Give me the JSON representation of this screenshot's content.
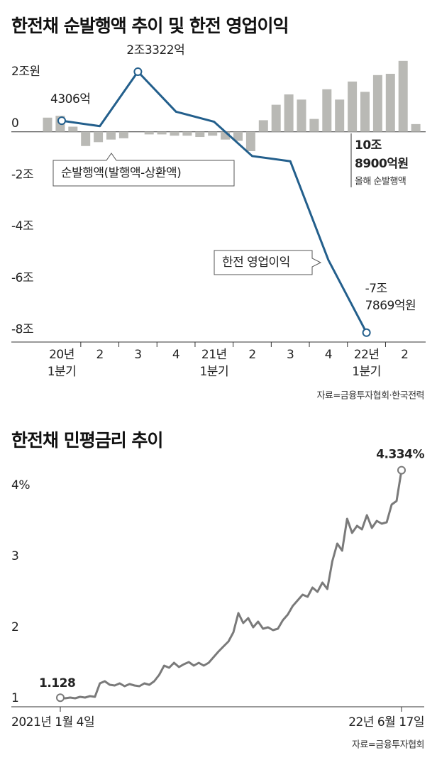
{
  "chart_data": [
    {
      "type": "bar_line",
      "title": "한전채 순발행액 추이 및 한전 영업이익",
      "categories": [
        "20년\n1분기",
        "2",
        "3",
        "4",
        "21년\n1분기",
        "2",
        "3",
        "4",
        "22년\n1분기",
        "2"
      ],
      "series": [
        {
          "name": "순발행액(발행액-상환액)",
          "type": "bar",
          "color": "#b9b9b5",
          "values": [
            [
              0.55,
              0.62,
              0.2
            ],
            [
              -0.55,
              -0.4,
              -0.3
            ],
            [
              -0.25,
              0,
              -0.1
            ],
            [
              -0.1,
              -0.15,
              -0.15
            ],
            [
              -0.2,
              -0.15,
              -0.3
            ],
            [
              -0.35,
              -0.75,
              0.45
            ],
            [
              1.05,
              1.45,
              1.25
            ],
            [
              0.5,
              1.65,
              1.25
            ],
            [
              1.95,
              1.55,
              2.2
            ],
            [
              2.25,
              2.75,
              0.3
            ]
          ]
        },
        {
          "name": "한전 영업이익",
          "type": "line",
          "color": "#235f8c",
          "values": [
            0.4306,
            0.22,
            2.3322,
            0.78,
            0.39,
            -0.94,
            -1.14,
            -4.97,
            -7.7869,
            null
          ],
          "value_labels": [
            "4306억",
            null,
            "2조3322억",
            null,
            null,
            null,
            null,
            null,
            "-7조\n7869억원",
            null
          ]
        }
      ],
      "ylim": [
        -8.15,
        2.8
      ],
      "yticks": [
        {
          "value": 2,
          "label": "2조원"
        },
        0,
        {
          "value": -2,
          "label": "-2조"
        },
        {
          "value": -4,
          "label": "-4조"
        },
        {
          "value": -6,
          "label": "-6조"
        },
        {
          "value": -8,
          "label": "-8조"
        }
      ],
      "grid": false,
      "annotations": [
        "10조\n8900억원",
        "올해 순발행액"
      ],
      "source": "자료=금융투자협회·한국전력"
    },
    {
      "type": "line",
      "title": "한전채 민평금리 추이",
      "categories": [
        "2021년 1월 4일",
        null,
        null,
        null,
        null,
        null,
        null,
        null,
        null,
        null,
        null,
        null,
        null,
        null,
        null,
        null,
        null,
        null,
        null,
        null,
        null,
        null,
        null,
        null,
        null,
        null,
        null,
        null,
        null,
        null,
        null,
        null,
        null,
        null,
        null,
        null,
        null,
        null,
        null,
        null,
        null,
        null,
        null,
        null,
        null,
        null,
        null,
        null,
        null,
        null,
        null,
        null,
        null,
        null,
        null,
        null,
        null,
        null,
        null,
        null,
        null,
        null,
        null,
        null,
        null,
        null,
        null,
        null,
        null,
        "22년 6월 17일"
      ],
      "series": [
        {
          "name": "민평금리",
          "color": "#7a7a7a",
          "values": [
            1.128,
            1.12,
            1.13,
            1.12,
            1.14,
            1.13,
            1.15,
            1.14,
            1.33,
            1.36,
            1.31,
            1.3,
            1.33,
            1.29,
            1.32,
            1.3,
            1.29,
            1.33,
            1.31,
            1.36,
            1.45,
            1.58,
            1.55,
            1.62,
            1.56,
            1.6,
            1.63,
            1.58,
            1.62,
            1.58,
            1.62,
            1.7,
            1.78,
            1.85,
            1.92,
            2.05,
            2.32,
            2.18,
            2.25,
            2.12,
            2.2,
            2.1,
            2.12,
            2.08,
            2.1,
            2.22,
            2.3,
            2.42,
            2.5,
            2.58,
            2.55,
            2.68,
            2.62,
            2.75,
            2.66,
            3.05,
            3.3,
            3.2,
            3.65,
            3.45,
            3.55,
            3.5,
            3.7,
            3.52,
            3.62,
            3.58,
            3.6,
            3.85,
            3.9,
            4.334
          ],
          "value_labels": [
            null,
            null,
            null,
            null,
            null,
            null,
            null,
            null,
            null,
            null,
            null,
            null,
            null,
            null,
            null,
            null,
            null,
            null,
            null,
            null,
            null,
            null,
            null,
            null,
            null,
            null,
            null,
            null,
            null,
            null,
            null,
            null,
            null,
            null,
            null,
            null,
            null,
            null,
            null,
            null,
            null,
            null,
            null,
            null,
            null,
            null,
            null,
            null,
            null,
            null,
            null,
            null,
            null,
            null,
            null,
            null,
            null,
            null,
            null,
            null,
            null,
            null,
            null,
            null,
            null,
            null,
            null,
            null,
            null,
            "4.334%"
          ]
        }
      ],
      "ylim": [
        1,
        4.5
      ],
      "yticks": [
        1,
        2,
        3,
        {
          "value": 4,
          "label": "4%"
        }
      ],
      "source": "자료=금융투자협회"
    }
  ]
}
